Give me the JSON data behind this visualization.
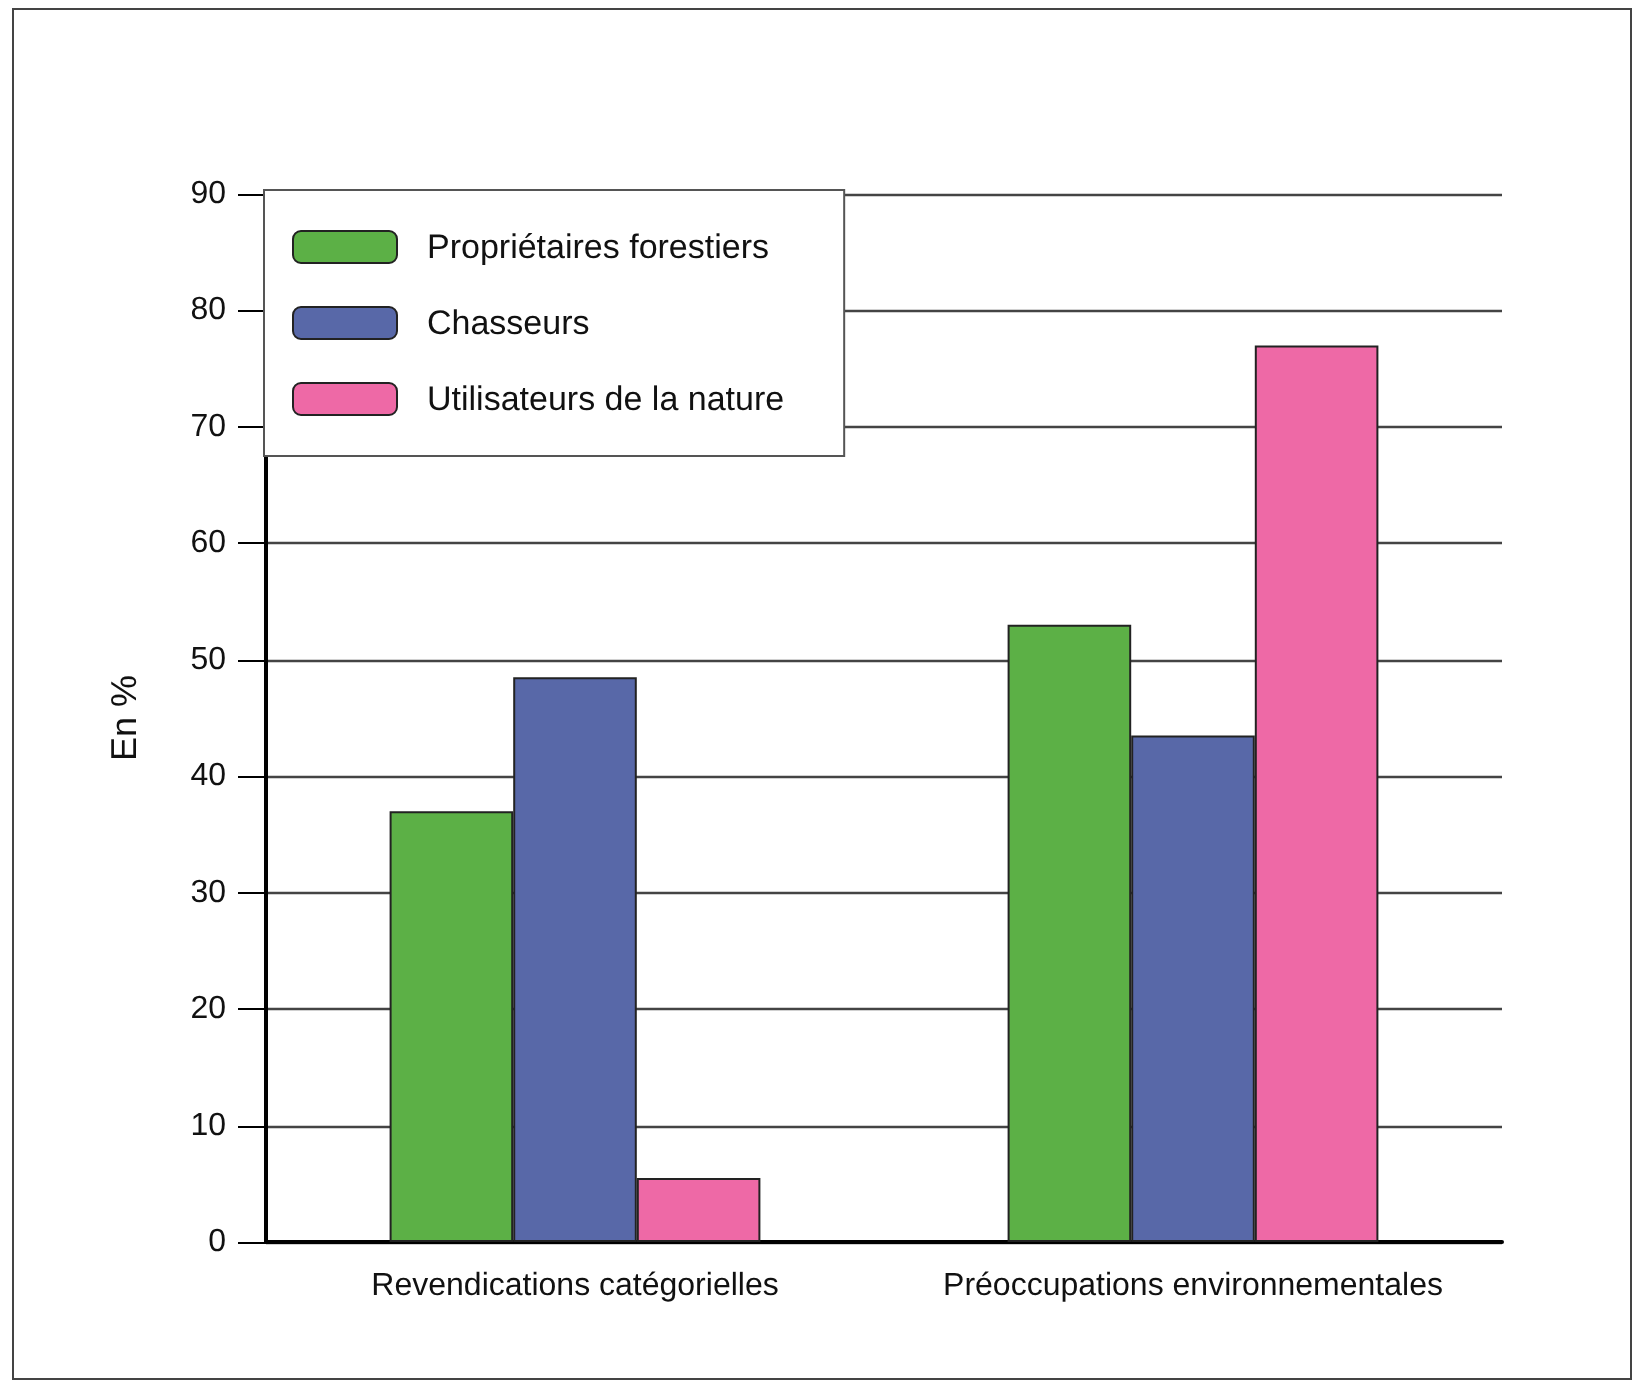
{
  "chart_data": {
    "type": "bar",
    "ylabel": "En %",
    "categories": [
      "Revendications catégorielles",
      "Préoccupations environnementales"
    ],
    "series": [
      {
        "name": "Propriétaires forestiers",
        "color": "#5cb046",
        "values": [
          37,
          53
        ]
      },
      {
        "name": "Chasseurs",
        "color": "#5868a8",
        "values": [
          48.5,
          43.5
        ]
      },
      {
        "name": "Utilisateurs de la nature",
        "color": "#ee69a6",
        "values": [
          5.5,
          77
        ]
      }
    ],
    "ylim": [
      0,
      90
    ],
    "yticks": [
      0,
      10,
      20,
      30,
      40,
      50,
      60,
      70,
      80,
      90
    ],
    "grid": "y",
    "legend": "top left"
  }
}
